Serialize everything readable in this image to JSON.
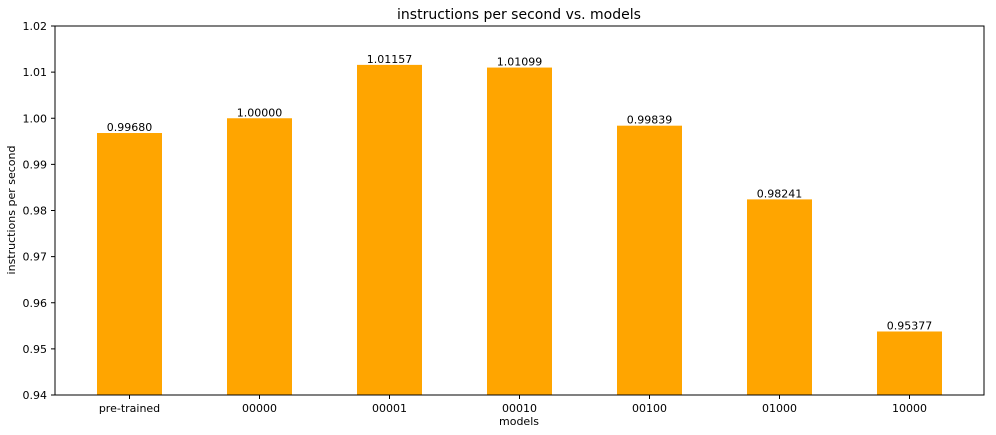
{
  "chart_data": {
    "type": "bar",
    "title": "instructions per second vs. models",
    "xlabel": "models",
    "ylabel": "instructions per second",
    "categories": [
      "pre-trained",
      "00000",
      "00001",
      "00010",
      "00100",
      "01000",
      "10000"
    ],
    "values": [
      0.9968,
      1.0,
      1.01157,
      1.01099,
      0.99839,
      0.98241,
      0.95377
    ],
    "value_labels": [
      "0.99680",
      "1.00000",
      "1.01157",
      "1.01099",
      "0.99839",
      "0.98241",
      "0.95377"
    ],
    "ylim": [
      0.94,
      1.02
    ],
    "yticks": [
      "0.94",
      "0.95",
      "0.96",
      "0.97",
      "0.98",
      "0.99",
      "1.00",
      "1.01",
      "1.02"
    ],
    "bar_color": "#ffa500",
    "grid": false,
    "legend": "none"
  }
}
